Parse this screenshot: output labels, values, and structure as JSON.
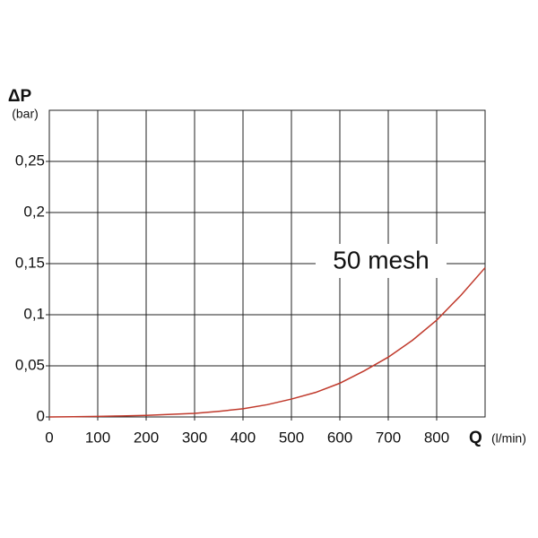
{
  "chart_data": {
    "type": "line",
    "y_label": "ΔP",
    "y_unit": "(bar)",
    "x_label": "Q",
    "x_unit": "(l/min)",
    "x": [
      0,
      50,
      100,
      150,
      200,
      250,
      300,
      350,
      400,
      450,
      500,
      550,
      600,
      650,
      700,
      750,
      800,
      850,
      900
    ],
    "series": [
      {
        "name": "50 mesh",
        "color": "#c0392b",
        "values": [
          0,
          0.0002,
          0.0005,
          0.001,
          0.0015,
          0.0025,
          0.0035,
          0.0055,
          0.008,
          0.012,
          0.0175,
          0.024,
          0.033,
          0.045,
          0.0585,
          0.075,
          0.0947,
          0.119,
          0.146
        ]
      }
    ],
    "xlim": [
      0,
      900
    ],
    "xticks": [
      0,
      100,
      200,
      300,
      400,
      500,
      600,
      700,
      800
    ],
    "ylim": [
      0,
      0.3
    ],
    "yticks": [
      0,
      {
        "value": 0.05,
        "label": "0,05"
      },
      {
        "value": 0.1,
        "label": "0,1"
      },
      {
        "value": 0.15,
        "label": "0,15"
      },
      {
        "value": 0.2,
        "label": "0,2"
      },
      {
        "value": 0.25,
        "label": "0,25"
      }
    ],
    "grid": true
  }
}
